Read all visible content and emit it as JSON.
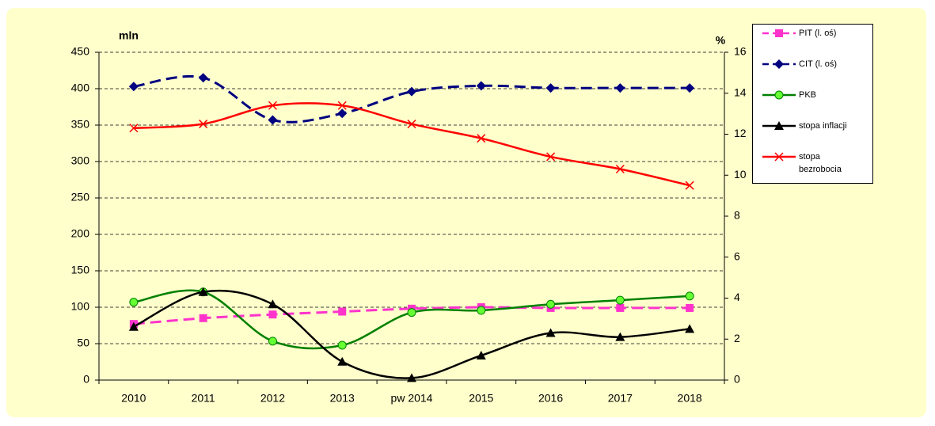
{
  "chart_data": {
    "type": "line",
    "ylabel": "mln",
    "y2label": "%",
    "categories": [
      "2010",
      "2011",
      "2012",
      "2013",
      "pw 2014",
      "2015",
      "2016",
      "2017",
      "2018"
    ],
    "series": [
      {
        "name": "PIT (l. oś)",
        "color": "#ff33cc",
        "marker": "square",
        "dash": true,
        "values": [
          77,
          85,
          90,
          94,
          98,
          100,
          99,
          99,
          99
        ]
      },
      {
        "name": "CIT (l. oś)",
        "color": "#000080",
        "marker": "diamond",
        "dash": true,
        "values": [
          403,
          415,
          357,
          366,
          396,
          404,
          401,
          401,
          401
        ]
      },
      {
        "name": "PKB",
        "color": "#008000",
        "marker": "circle",
        "dash": false,
        "axis": "y2",
        "values": [
          3.8,
          4.3,
          1.9,
          1.7,
          3.3,
          3.4,
          3.7,
          3.9,
          4.1
        ]
      },
      {
        "name": "stopa inflacji",
        "color": "#000000",
        "marker": "triangle",
        "dash": false,
        "axis": "y2",
        "values": [
          2.6,
          4.3,
          3.7,
          0.9,
          0.1,
          1.2,
          2.3,
          2.1,
          2.5
        ]
      },
      {
        "name": "stopa bezrobocia",
        "color": "#ff0000",
        "marker": "x",
        "dash": false,
        "axis": "y2",
        "values": [
          12.3,
          12.5,
          13.4,
          13.4,
          12.5,
          11.8,
          10.9,
          10.3,
          9.5
        ]
      }
    ],
    "ylim": [
      0,
      450
    ],
    "yticks": [
      0,
      50,
      100,
      150,
      200,
      250,
      300,
      350,
      400,
      450
    ],
    "y2lim": [
      0,
      16
    ],
    "y2ticks": [
      0,
      2,
      4,
      6,
      8,
      10,
      12,
      14,
      16
    ],
    "grid": true,
    "legend": "right"
  }
}
